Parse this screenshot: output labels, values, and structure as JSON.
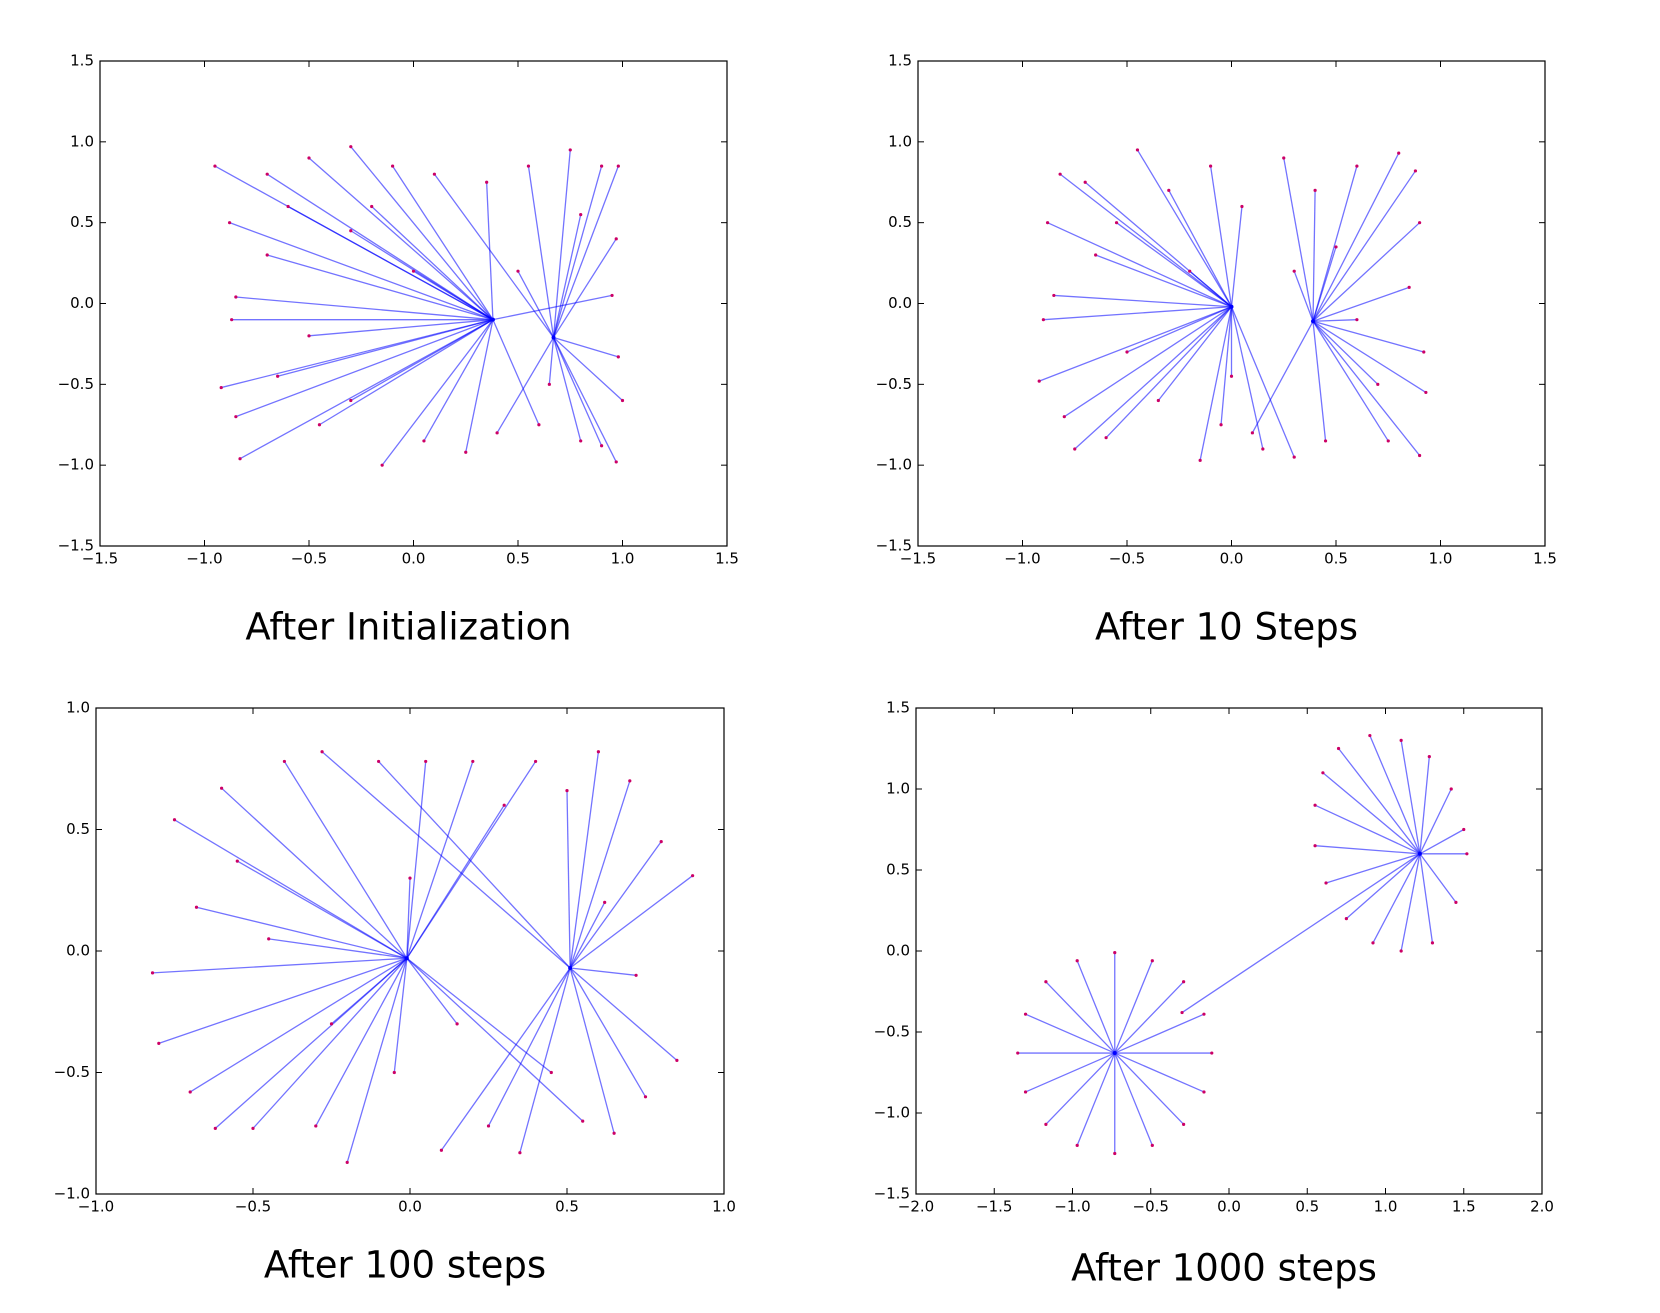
{
  "chart_data": [
    {
      "type": "scatter",
      "caption": "After Initialization",
      "xlim": [
        -1.5,
        1.5
      ],
      "ylim": [
        -1.5,
        1.5
      ],
      "xticks": [
        {
          "value": -1.5,
          "label": "−1.5"
        },
        {
          "value": -1,
          "label": "−1.0"
        },
        {
          "value": -0.5,
          "label": "−0.5"
        },
        {
          "value": 0,
          "label": "0.0"
        },
        0.5,
        {
          "value": 1,
          "label": "1.0"
        },
        1.5
      ],
      "yticks": [
        {
          "value": -1.5,
          "label": "−1.5"
        },
        {
          "value": -1,
          "label": "−1.0"
        },
        {
          "value": -0.5,
          "label": "−0.5"
        },
        {
          "value": 0,
          "label": "0.0"
        },
        0.5,
        {
          "value": 1,
          "label": "1.0"
        },
        1.5
      ],
      "line_color": "#0000ff",
      "point_color": "#cc0066",
      "centers": {
        "x": [
          0.38,
          0.67
        ],
        "y": [
          -0.1,
          -0.21
        ]
      },
      "points": {
        "x": [
          -0.95,
          -0.88,
          -0.85,
          -0.87,
          -0.92,
          -0.85,
          -0.83,
          -0.7,
          -0.7,
          -0.65,
          -0.5,
          -0.5,
          -0.45,
          -0.3,
          -0.3,
          -0.3,
          -0.15,
          -0.1,
          0.0,
          0.05,
          0.1,
          0.25,
          0.35,
          0.4,
          0.55,
          0.5,
          0.65,
          0.75,
          0.8,
          0.8,
          0.9,
          0.98,
          0.97,
          0.95,
          0.98,
          1.0,
          0.97,
          0.9,
          -0.6,
          -0.2,
          0.6
        ],
        "y": [
          0.85,
          0.5,
          0.04,
          -0.1,
          -0.52,
          -0.7,
          -0.96,
          0.8,
          0.3,
          -0.45,
          0.9,
          -0.2,
          -0.75,
          0.97,
          0.45,
          -0.6,
          -1.0,
          0.85,
          0.2,
          -0.85,
          0.8,
          -0.92,
          0.75,
          -0.8,
          0.85,
          0.2,
          -0.5,
          0.95,
          0.55,
          -0.85,
          0.85,
          0.85,
          0.4,
          0.05,
          -0.33,
          -0.6,
          -0.98,
          -0.88,
          0.6,
          0.6,
          -0.75
        ],
        "cluster": [
          0,
          0,
          0,
          0,
          0,
          0,
          0,
          0,
          0,
          0,
          0,
          0,
          0,
          0,
          0,
          0,
          0,
          0,
          0,
          0,
          1,
          0,
          0,
          1,
          1,
          1,
          1,
          1,
          1,
          1,
          1,
          1,
          1,
          0,
          1,
          1,
          1,
          1,
          0,
          0,
          0
        ]
      }
    },
    {
      "type": "scatter",
      "caption": "After 10 Steps",
      "xlim": [
        -1.5,
        1.5
      ],
      "ylim": [
        -1.5,
        1.5
      ],
      "xticks": [
        {
          "value": -1.5,
          "label": "−1.5"
        },
        {
          "value": -1,
          "label": "−1.0"
        },
        {
          "value": -0.5,
          "label": "−0.5"
        },
        {
          "value": 0,
          "label": "0.0"
        },
        0.5,
        {
          "value": 1,
          "label": "1.0"
        },
        1.5
      ],
      "yticks": [
        {
          "value": -1.5,
          "label": "−1.5"
        },
        {
          "value": -1,
          "label": "−1.0"
        },
        {
          "value": -0.5,
          "label": "−0.5"
        },
        {
          "value": 0,
          "label": "0.0"
        },
        0.5,
        {
          "value": 1,
          "label": "1.0"
        },
        1.5
      ],
      "line_color": "#0000ff",
      "point_color": "#cc0066",
      "centers": {
        "x": [
          0.0,
          0.39
        ],
        "y": [
          -0.02,
          -0.11
        ]
      },
      "points": {
        "x": [
          -0.92,
          -0.85,
          -0.82,
          -0.88,
          -0.9,
          -0.8,
          -0.75,
          -0.7,
          -0.65,
          -0.6,
          -0.55,
          -0.5,
          -0.45,
          -0.35,
          -0.3,
          -0.2,
          -0.15,
          -0.1,
          0.0,
          0.05,
          0.1,
          0.15,
          0.25,
          0.3,
          0.4,
          0.45,
          0.5,
          0.6,
          0.7,
          0.75,
          0.8,
          0.88,
          0.9,
          0.92,
          0.93,
          0.9,
          0.85,
          0.6,
          -0.05,
          0.3
        ],
        "y": [
          -0.48,
          0.05,
          0.8,
          0.5,
          -0.1,
          -0.7,
          -0.9,
          0.75,
          0.3,
          -0.83,
          0.5,
          -0.3,
          0.95,
          -0.6,
          0.7,
          0.2,
          -0.97,
          0.85,
          -0.45,
          0.6,
          -0.8,
          -0.9,
          0.9,
          -0.95,
          0.7,
          -0.85,
          0.35,
          0.85,
          -0.5,
          -0.85,
          0.93,
          0.82,
          0.5,
          -0.3,
          -0.55,
          -0.94,
          0.1,
          -0.1,
          -0.75,
          0.2
        ],
        "cluster": [
          0,
          0,
          0,
          0,
          0,
          0,
          0,
          0,
          0,
          0,
          0,
          0,
          0,
          0,
          0,
          0,
          0,
          0,
          0,
          0,
          1,
          0,
          1,
          0,
          1,
          1,
          1,
          1,
          1,
          1,
          1,
          1,
          1,
          1,
          1,
          1,
          1,
          1,
          0,
          1
        ]
      }
    },
    {
      "type": "scatter",
      "caption": "After 100 steps",
      "xlim": [
        -1,
        1
      ],
      "ylim": [
        -1,
        1
      ],
      "xticks": [
        {
          "value": -1,
          "label": "−1.0"
        },
        {
          "value": -0.5,
          "label": "−0.5"
        },
        {
          "value": 0,
          "label": "0.0"
        },
        0.5,
        {
          "value": 1,
          "label": "1.0"
        }
      ],
      "yticks": [
        {
          "value": -1,
          "label": "−1.0"
        },
        {
          "value": -0.5,
          "label": "−0.5"
        },
        {
          "value": 0,
          "label": "0.0"
        },
        0.5,
        {
          "value": 1,
          "label": "1.0"
        }
      ],
      "line_color": "#0000ff",
      "point_color": "#cc0066",
      "centers": {
        "x": [
          -0.01,
          0.51
        ],
        "y": [
          -0.03,
          -0.07
        ]
      },
      "points": {
        "x": [
          -0.82,
          -0.8,
          -0.75,
          -0.7,
          -0.68,
          -0.62,
          -0.6,
          -0.55,
          -0.5,
          -0.45,
          -0.4,
          -0.3,
          -0.28,
          -0.2,
          -0.1,
          -0.05,
          0.0,
          0.05,
          0.1,
          0.15,
          0.2,
          0.25,
          0.3,
          0.35,
          0.4,
          0.45,
          0.5,
          0.55,
          0.6,
          0.65,
          0.7,
          0.75,
          0.8,
          0.85,
          0.9,
          0.62,
          0.72,
          -0.25
        ],
        "y": [
          -0.09,
          -0.38,
          0.54,
          -0.58,
          0.18,
          -0.73,
          0.67,
          0.37,
          -0.73,
          0.05,
          0.78,
          -0.72,
          0.82,
          -0.87,
          0.78,
          -0.5,
          0.3,
          0.78,
          -0.82,
          -0.3,
          0.78,
          -0.72,
          0.6,
          -0.83,
          0.78,
          -0.5,
          0.66,
          -0.7,
          0.82,
          -0.75,
          0.7,
          -0.6,
          0.45,
          -0.45,
          0.31,
          0.2,
          -0.1,
          -0.3
        ],
        "cluster": [
          0,
          0,
          0,
          0,
          0,
          0,
          0,
          0,
          0,
          0,
          0,
          0,
          1,
          0,
          1,
          0,
          0,
          0,
          1,
          0,
          0,
          1,
          0,
          1,
          0,
          0,
          1,
          0,
          1,
          1,
          1,
          1,
          1,
          1,
          1,
          1,
          1,
          0
        ]
      }
    },
    {
      "type": "scatter",
      "caption": "After 1000 steps",
      "xlim": [
        -2,
        2
      ],
      "ylim": [
        -1.5,
        1.5
      ],
      "xticks": [
        {
          "value": -2,
          "label": "−2.0"
        },
        {
          "value": -1.5,
          "label": "−1.5"
        },
        {
          "value": -1,
          "label": "−1.0"
        },
        {
          "value": -0.5,
          "label": "−0.5"
        },
        {
          "value": 0,
          "label": "0.0"
        },
        0.5,
        {
          "value": 1,
          "label": "1.0"
        },
        1.5,
        {
          "value": 2,
          "label": "2.0"
        }
      ],
      "yticks": [
        {
          "value": -1.5,
          "label": "−1.5"
        },
        {
          "value": -1,
          "label": "−1.0"
        },
        {
          "value": -0.5,
          "label": "−0.5"
        },
        {
          "value": 0,
          "label": "0.0"
        },
        0.5,
        {
          "value": 1,
          "label": "1.0"
        },
        1.5
      ],
      "line_color": "#0000ff",
      "point_color": "#cc0066",
      "centers": {
        "x": [
          -0.73,
          1.22
        ],
        "y": [
          -0.63,
          0.6
        ]
      },
      "points": {
        "x": [
          -0.11,
          -0.16,
          -0.29,
          -0.49,
          -0.73,
          -0.97,
          -1.17,
          -1.3,
          -1.35,
          -1.3,
          -1.17,
          -0.97,
          -0.73,
          -0.49,
          -0.29,
          -0.16,
          1.52,
          1.5,
          1.42,
          1.28,
          1.1,
          0.9,
          0.7,
          0.6,
          0.55,
          0.55,
          0.62,
          0.75,
          0.92,
          1.1,
          1.3,
          1.45,
          -0.3
        ],
        "y": [
          -0.63,
          -0.39,
          -0.19,
          -0.06,
          -0.01,
          -0.06,
          -0.19,
          -0.39,
          -0.63,
          -0.87,
          -1.07,
          -1.2,
          -1.25,
          -1.2,
          -1.07,
          -0.87,
          0.6,
          0.75,
          1.0,
          1.2,
          1.3,
          1.33,
          1.25,
          1.1,
          0.9,
          0.65,
          0.42,
          0.2,
          0.05,
          0.0,
          0.05,
          0.3,
          -0.38
        ],
        "cluster": [
          0,
          0,
          0,
          0,
          0,
          0,
          0,
          0,
          0,
          0,
          0,
          0,
          0,
          0,
          0,
          0,
          1,
          1,
          1,
          1,
          1,
          1,
          1,
          1,
          1,
          1,
          1,
          1,
          1,
          1,
          1,
          1,
          1
        ]
      }
    }
  ]
}
